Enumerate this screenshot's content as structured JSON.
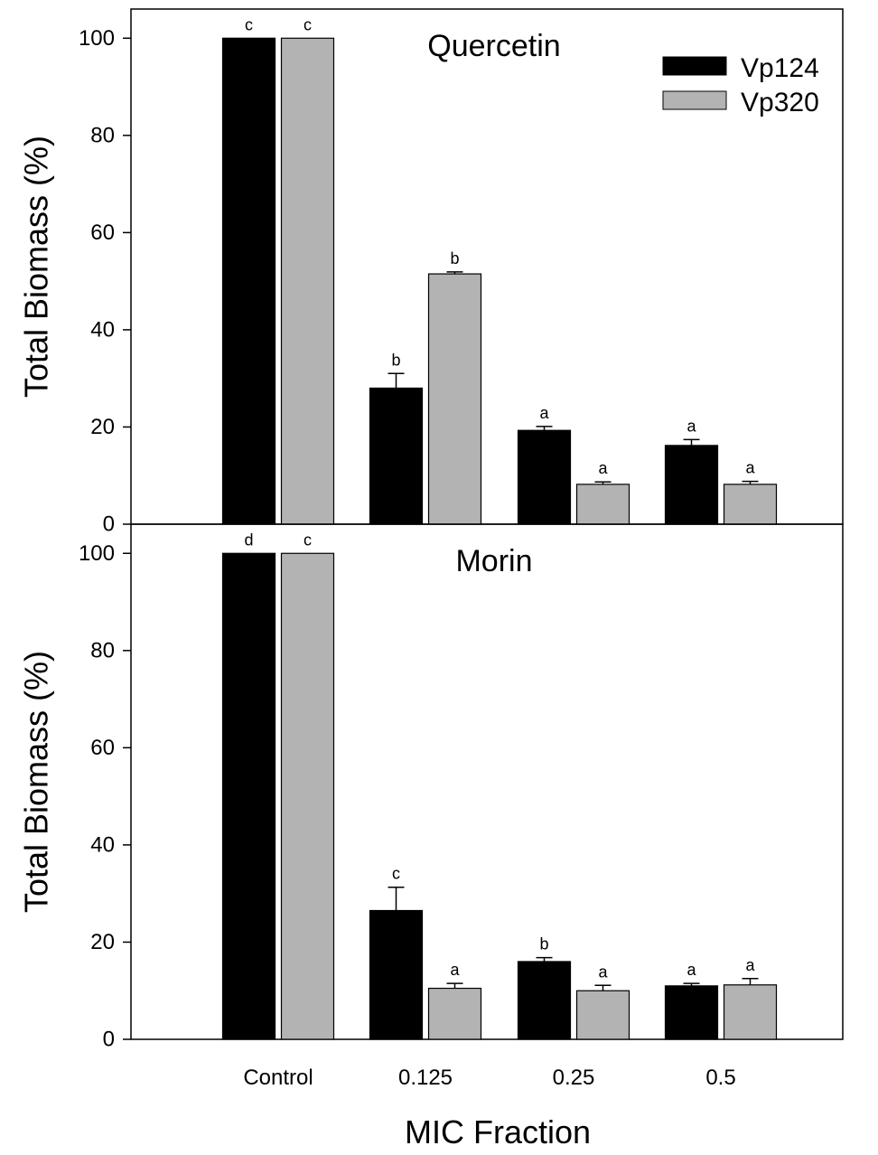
{
  "chart_data": {
    "type": "bar",
    "xlabel": "MIC Fraction",
    "categories": [
      "Control",
      "0.125",
      "0.25",
      "0.5"
    ],
    "legend": {
      "position": "top-right",
      "entries": [
        {
          "name": "Vp124",
          "color": "#000000"
        },
        {
          "name": "Vp320",
          "color": "#b3b3b3"
        }
      ]
    },
    "panels": [
      {
        "title": "Quercetin",
        "ylabel": "Total Biomass (%)",
        "ylim": [
          0,
          106
        ],
        "yticks": [
          0,
          20,
          40,
          60,
          80,
          100
        ],
        "grid": false,
        "series": [
          {
            "name": "Vp124",
            "color": "#000000",
            "values": [
              100,
              28,
              19.3,
              16.2
            ],
            "errors": [
              0,
              3,
              0.8,
              1.2
            ],
            "labels": [
              "c",
              "b",
              "a",
              "a"
            ]
          },
          {
            "name": "Vp320",
            "color": "#b3b3b3",
            "values": [
              100,
              51.5,
              8.2,
              8.2
            ],
            "errors": [
              0,
              0.4,
              0.5,
              0.6
            ],
            "labels": [
              "c",
              "b",
              "a",
              "a"
            ]
          }
        ]
      },
      {
        "title": "Morin",
        "ylabel": "Total Biomass (%)",
        "ylim": [
          0,
          106
        ],
        "yticks": [
          0,
          20,
          40,
          60,
          80,
          100
        ],
        "grid": false,
        "series": [
          {
            "name": "Vp124",
            "color": "#000000",
            "values": [
              100,
              26.5,
              16,
              11
            ],
            "errors": [
              0,
              4.8,
              0.8,
              0.5
            ],
            "labels": [
              "d",
              "c",
              "b",
              "a"
            ]
          },
          {
            "name": "Vp320",
            "color": "#b3b3b3",
            "values": [
              100,
              10.5,
              10,
              11.2
            ],
            "errors": [
              0,
              1,
              1.1,
              1.3
            ],
            "labels": [
              "c",
              "a",
              "a",
              "a"
            ]
          }
        ]
      }
    ]
  }
}
